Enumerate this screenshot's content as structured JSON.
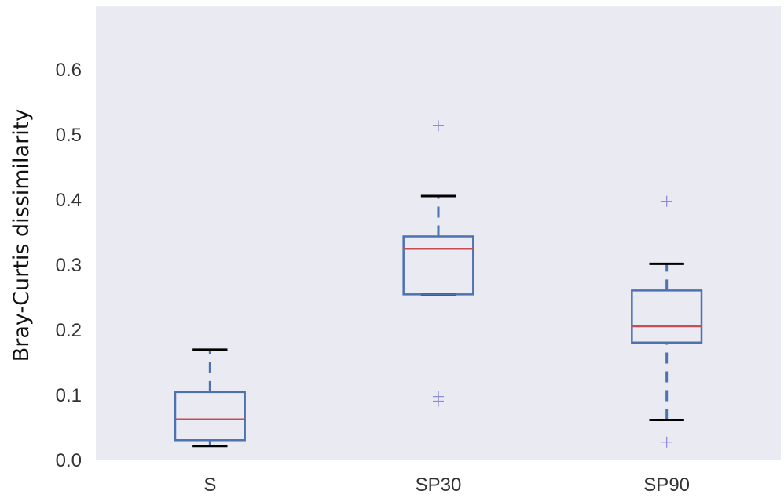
{
  "chart_data": {
    "type": "boxplot",
    "title": "",
    "xlabel": "",
    "ylabel": "Bray-Curtis dissimilarity",
    "ylim": [
      0.0,
      0.7
    ],
    "yticks": [
      "0.0",
      "0.1",
      "0.2",
      "0.3",
      "0.4",
      "0.5",
      "0.6"
    ],
    "categories": [
      "S",
      "SP30",
      "SP90"
    ],
    "boxes": [
      {
        "category": "S",
        "whisker_low": 0.022,
        "q1": 0.031,
        "median": 0.063,
        "q3": 0.105,
        "whisker_high": 0.17,
        "outliers": []
      },
      {
        "category": "SP30",
        "whisker_low": 0.255,
        "q1": 0.255,
        "median": 0.325,
        "q3": 0.344,
        "whisker_high": 0.406,
        "outliers": [
          0.514,
          0.098,
          0.091
        ]
      },
      {
        "category": "SP90",
        "whisker_low": 0.062,
        "q1": 0.181,
        "median": 0.206,
        "q3": 0.261,
        "whisker_high": 0.302,
        "outliers": [
          0.398,
          0.028
        ]
      }
    ],
    "grid": false,
    "background_color": "#eaeaf2",
    "box_color": "#4c72b0",
    "median_color": "#c44e52",
    "cap_color": "#000000",
    "flier_color": "#8c8cd8"
  }
}
